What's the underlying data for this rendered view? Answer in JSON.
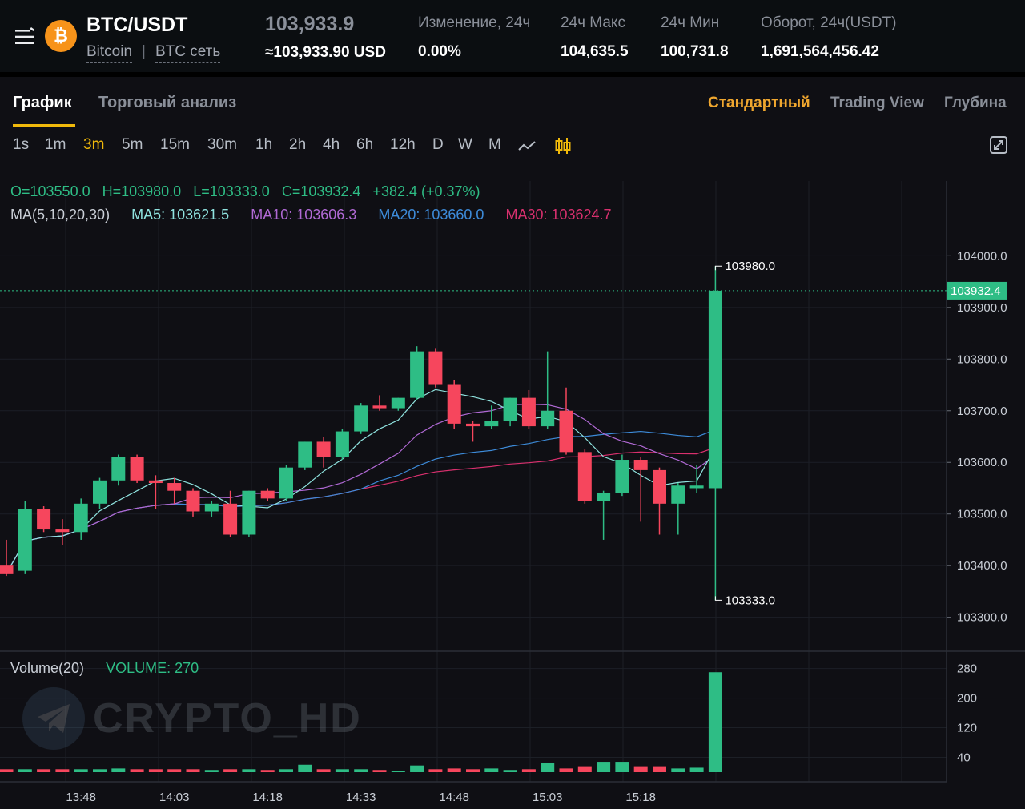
{
  "header": {
    "pair": "BTC/USDT",
    "coin_symbol": "₿",
    "coin_color": "#f7931a",
    "coin_name": "Bitcoin",
    "network": "BTC сеть",
    "last_price": "103,933.9",
    "usd_price": "≈103,933.90 USD",
    "stats": [
      {
        "label": "Изменение, 24ч",
        "value": "0.00%"
      },
      {
        "label": "24ч Макс",
        "value": "104,635.5"
      },
      {
        "label": "24ч Мин",
        "value": "100,731.8"
      },
      {
        "label": "Оборот, 24ч(USDT)",
        "value": "1,691,564,456.42"
      }
    ]
  },
  "tabs": [
    {
      "label": "График",
      "active": true
    },
    {
      "label": "Торговый анализ",
      "active": false
    }
  ],
  "views": [
    {
      "label": "Стандартный",
      "active": true
    },
    {
      "label": "Trading View",
      "active": false
    },
    {
      "label": "Глубина",
      "active": false
    }
  ],
  "intervals": [
    "1s",
    "1m",
    "3m",
    "5m",
    "15m",
    "30m",
    "1h",
    "2h",
    "4h",
    "6h",
    "12h",
    "D",
    "W",
    "M"
  ],
  "active_interval": "3m",
  "ohlc": {
    "o": "O=103550.0",
    "h": "H=103980.0",
    "l": "L=103333.0",
    "c": "C=103932.4",
    "chg": "+382.4 (+0.37%)"
  },
  "ma": {
    "label": "MA(5,10,20,30)",
    "ma5": "MA5: 103621.5",
    "ma10": "MA10: 103606.3",
    "ma20": "MA20: 103660.0",
    "ma30": "MA30: 103624.7"
  },
  "volume": {
    "label": "Volume(20)",
    "value": "VOLUME: 270"
  },
  "watermark": "CRYPTO_HD",
  "colors": {
    "up": "#2ebd85",
    "down": "#f6465d",
    "accent": "#f0b90b",
    "ma5": "#8fe3df",
    "ma10": "#b069d4",
    "ma20": "#3d8bd9",
    "ma30": "#d9306e"
  },
  "chart_data": {
    "type": "candlestick",
    "price_ticks": [
      104000,
      103900,
      103800,
      103700,
      103600,
      103500,
      103400,
      103300
    ],
    "price_range": [
      103270,
      104030
    ],
    "current_price": "103932.4",
    "high_marker": "103980.0",
    "low_marker": "103333.0",
    "volume_ticks": [
      280,
      200,
      120,
      40
    ],
    "volume_range": [
      0,
      290
    ],
    "time_labels": [
      {
        "label": "13:48",
        "index": 4
      },
      {
        "label": "14:03",
        "index": 9
      },
      {
        "label": "14:18",
        "index": 14
      },
      {
        "label": "14:33",
        "index": 19
      },
      {
        "label": "14:48",
        "index": 24
      },
      {
        "label": "15:03",
        "index": 29
      },
      {
        "label": "15:18",
        "index": 34
      }
    ],
    "candles": [
      [
        103400,
        103450,
        103380,
        103385,
        8
      ],
      [
        103390,
        103525,
        103385,
        103510,
        8
      ],
      [
        103510,
        103515,
        103465,
        103470,
        8
      ],
      [
        103470,
        103490,
        103440,
        103465,
        8
      ],
      [
        103465,
        103530,
        103450,
        103520,
        8
      ],
      [
        103520,
        103570,
        103510,
        103565,
        8
      ],
      [
        103565,
        103615,
        103555,
        103610,
        10
      ],
      [
        103610,
        103615,
        103560,
        103565,
        8
      ],
      [
        103565,
        103575,
        103510,
        103560,
        8
      ],
      [
        103560,
        103570,
        103520,
        103545,
        8
      ],
      [
        103545,
        103550,
        103495,
        103505,
        8
      ],
      [
        103505,
        103525,
        103495,
        103520,
        6
      ],
      [
        103520,
        103545,
        103455,
        103460,
        8
      ],
      [
        103460,
        103545,
        103455,
        103545,
        8
      ],
      [
        103545,
        103550,
        103525,
        103530,
        6
      ],
      [
        103530,
        103595,
        103525,
        103590,
        8
      ],
      [
        103590,
        103640,
        103585,
        103640,
        20
      ],
      [
        103640,
        103650,
        103590,
        103610,
        8
      ],
      [
        103610,
        103665,
        103605,
        103660,
        8
      ],
      [
        103660,
        103715,
        103655,
        103710,
        8
      ],
      [
        103710,
        103730,
        103700,
        103705,
        6
      ],
      [
        103705,
        103725,
        103700,
        103725,
        4
      ],
      [
        103725,
        103825,
        103720,
        103815,
        18
      ],
      [
        103815,
        103820,
        103745,
        103750,
        8
      ],
      [
        103750,
        103760,
        103665,
        103675,
        10
      ],
      [
        103675,
        103680,
        103640,
        103670,
        8
      ],
      [
        103670,
        103710,
        103665,
        103680,
        10
      ],
      [
        103680,
        103725,
        103670,
        103725,
        6
      ],
      [
        103725,
        103740,
        103665,
        103670,
        8
      ],
      [
        103670,
        103815,
        103665,
        103700,
        26
      ],
      [
        103700,
        103745,
        103615,
        103620,
        10
      ],
      [
        103620,
        103625,
        103520,
        103525,
        16
      ],
      [
        103525,
        103545,
        103450,
        103540,
        28
      ],
      [
        103540,
        103615,
        103535,
        103605,
        28
      ],
      [
        103605,
        103610,
        103485,
        103585,
        16
      ],
      [
        103585,
        103590,
        103460,
        103520,
        16
      ],
      [
        103520,
        103560,
        103460,
        103555,
        10
      ],
      [
        103550,
        103595,
        103540,
        103555,
        12
      ],
      [
        103550,
        103980,
        103333,
        103932.4,
        270
      ]
    ]
  }
}
